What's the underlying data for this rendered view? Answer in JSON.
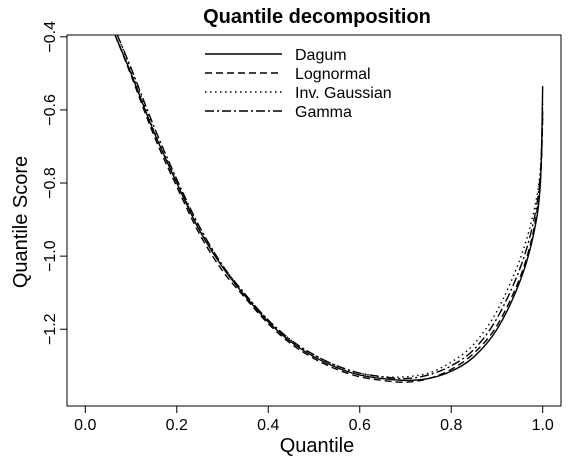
{
  "chart_data": {
    "type": "line",
    "title": "Quantile decomposition",
    "xlabel": "Quantile",
    "ylabel": "Quantile Score",
    "xlim": [
      -0.04,
      1.04
    ],
    "ylim": [
      -1.41,
      -0.395
    ],
    "xticks": [
      0.0,
      0.2,
      0.4,
      0.6,
      0.8,
      1.0
    ],
    "xtick_labels": [
      "0.0",
      "0.2",
      "0.4",
      "0.6",
      "0.8",
      "1.0"
    ],
    "yticks": [
      -1.2,
      -1.0,
      -0.8,
      -0.6,
      -0.4
    ],
    "ytick_labels": [
      "−1.2",
      "−1.0",
      "−0.8",
      "−0.6",
      "−0.4"
    ],
    "grid": false,
    "legend_position": "top-center",
    "series": [
      {
        "name": "Dagum",
        "linestyle": "solid",
        "x": [
          0.065,
          0.1,
          0.15,
          0.2,
          0.25,
          0.3,
          0.35,
          0.4,
          0.45,
          0.5,
          0.55,
          0.6,
          0.65,
          0.7,
          0.75,
          0.8,
          0.85,
          0.9,
          0.95,
          0.98,
          0.995,
          1.0
        ],
        "y": [
          -0.395,
          -0.5,
          -0.66,
          -0.8,
          -0.93,
          -1.03,
          -1.11,
          -1.18,
          -1.235,
          -1.275,
          -1.305,
          -1.325,
          -1.335,
          -1.34,
          -1.335,
          -1.315,
          -1.275,
          -1.2,
          -1.07,
          -0.94,
          -0.8,
          -0.535
        ]
      },
      {
        "name": "Lognormal",
        "linestyle": "dashed",
        "x": [
          0.065,
          0.1,
          0.15,
          0.2,
          0.25,
          0.3,
          0.35,
          0.4,
          0.45,
          0.5,
          0.55,
          0.6,
          0.65,
          0.7,
          0.75,
          0.8,
          0.85,
          0.9,
          0.95,
          0.98,
          0.995,
          1.0
        ],
        "y": [
          -0.395,
          -0.505,
          -0.67,
          -0.81,
          -0.94,
          -1.04,
          -1.115,
          -1.185,
          -1.24,
          -1.28,
          -1.31,
          -1.33,
          -1.34,
          -1.345,
          -1.335,
          -1.31,
          -1.265,
          -1.19,
          -1.06,
          -0.93,
          -0.79,
          -0.62
        ]
      },
      {
        "name": "Inv. Gaussian",
        "linestyle": "dotted",
        "x": [
          0.07,
          0.1,
          0.15,
          0.2,
          0.25,
          0.3,
          0.35,
          0.4,
          0.45,
          0.5,
          0.55,
          0.6,
          0.65,
          0.7,
          0.75,
          0.8,
          0.85,
          0.9,
          0.95,
          0.98,
          0.995,
          1.0
        ],
        "y": [
          -0.395,
          -0.49,
          -0.655,
          -0.795,
          -0.925,
          -1.025,
          -1.105,
          -1.175,
          -1.23,
          -1.27,
          -1.3,
          -1.32,
          -1.33,
          -1.33,
          -1.32,
          -1.29,
          -1.24,
          -1.15,
          -1.01,
          -0.88,
          -0.76,
          -0.58
        ]
      },
      {
        "name": "Gamma",
        "linestyle": "dashdot",
        "x": [
          0.07,
          0.1,
          0.15,
          0.2,
          0.25,
          0.3,
          0.35,
          0.4,
          0.45,
          0.5,
          0.55,
          0.6,
          0.65,
          0.7,
          0.75,
          0.8,
          0.85,
          0.9,
          0.95,
          0.98,
          0.995,
          1.0
        ],
        "y": [
          -0.395,
          -0.485,
          -0.645,
          -0.79,
          -0.92,
          -1.025,
          -1.105,
          -1.175,
          -1.23,
          -1.27,
          -1.3,
          -1.32,
          -1.33,
          -1.335,
          -1.325,
          -1.3,
          -1.255,
          -1.17,
          -1.035,
          -0.905,
          -0.775,
          -0.6
        ]
      }
    ]
  }
}
